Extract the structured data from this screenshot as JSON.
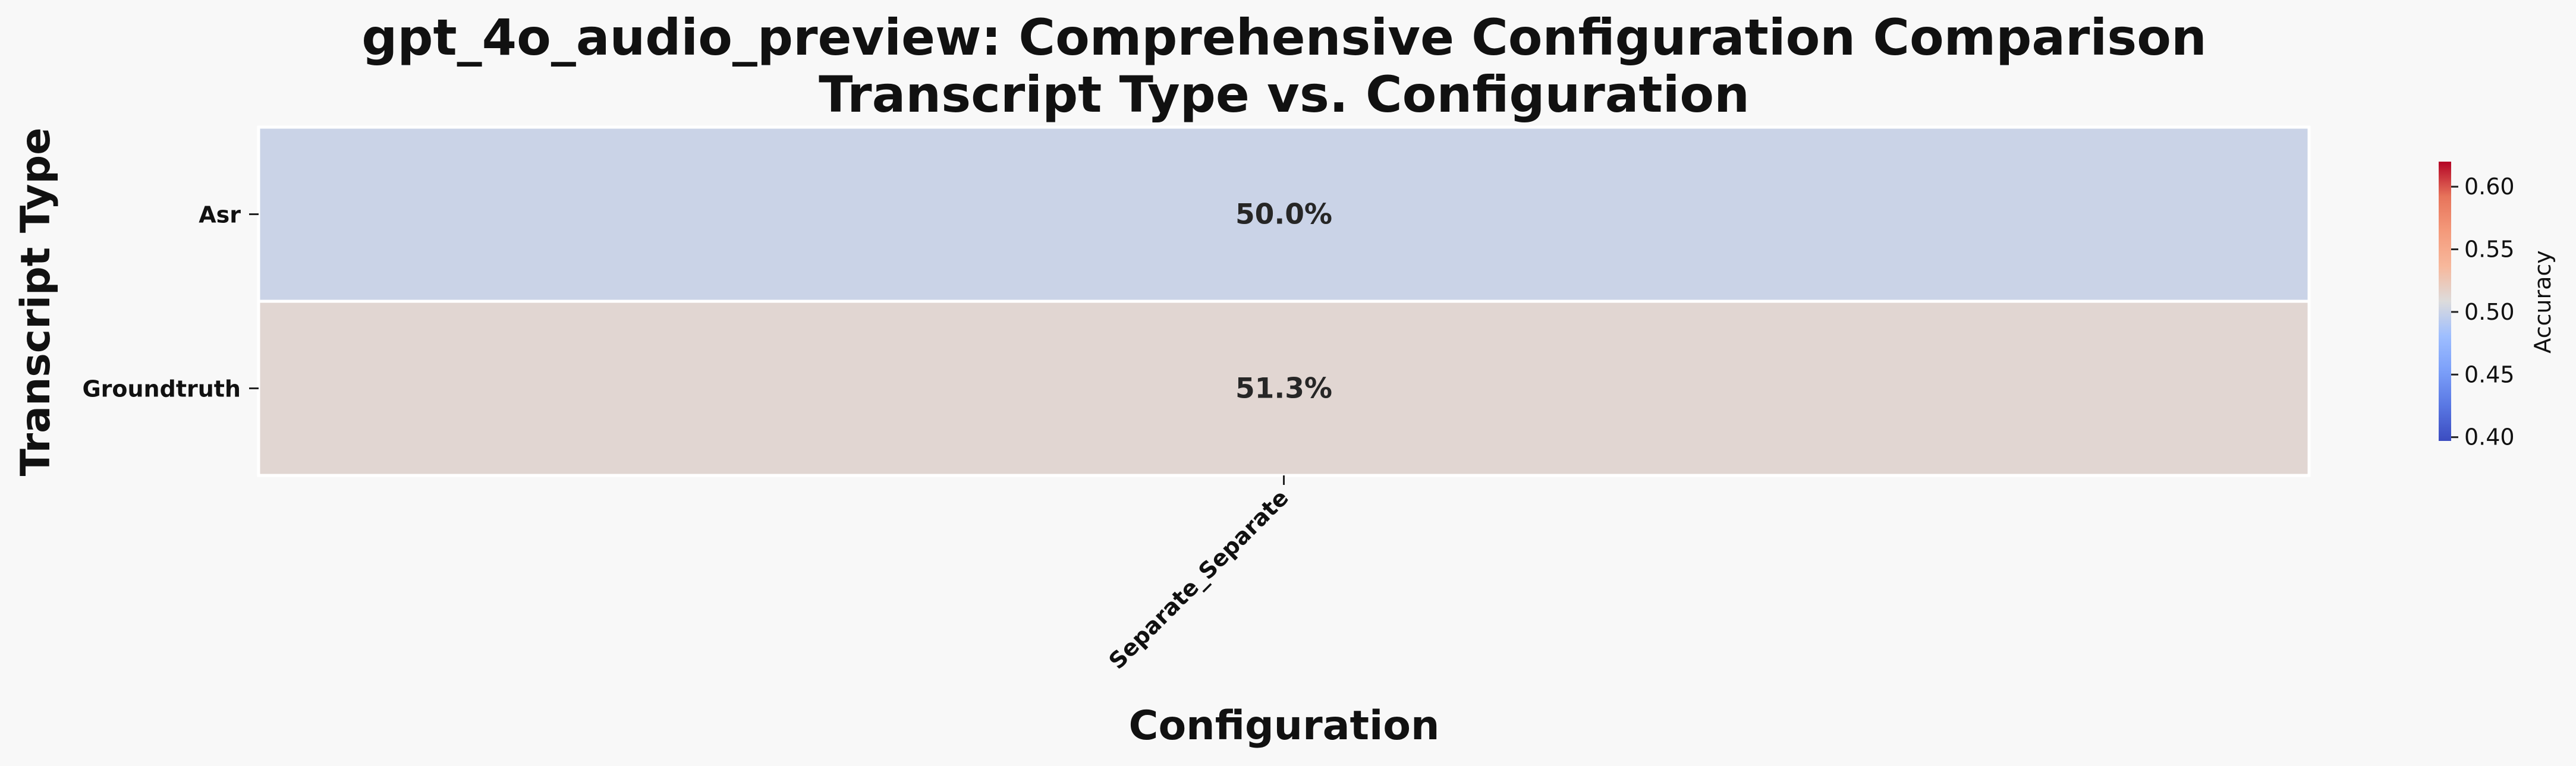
{
  "chart_data": {
    "type": "heatmap",
    "title": "gpt_4o_audio_preview: Comprehensive Configuration Comparison",
    "subtitle": "Transcript Type vs. Configuration",
    "xlabel": "Configuration",
    "ylabel": "Transcript Type",
    "x_categories": [
      "Separate_Separate"
    ],
    "y_categories": [
      "Asr",
      "Groundtruth"
    ],
    "values": [
      [
        0.5
      ],
      [
        0.513
      ]
    ],
    "cell_labels": [
      [
        "50.0%"
      ],
      [
        "51.3%"
      ]
    ],
    "colorscale": "coolwarm",
    "colorbar": {
      "label": "Accuracy",
      "range": [
        0.397,
        0.62
      ],
      "ticks": [
        0.4,
        0.45,
        0.5,
        0.55,
        0.6
      ],
      "tick_labels": [
        "0.40",
        "0.45",
        "0.50",
        "0.55",
        "0.60"
      ]
    }
  }
}
